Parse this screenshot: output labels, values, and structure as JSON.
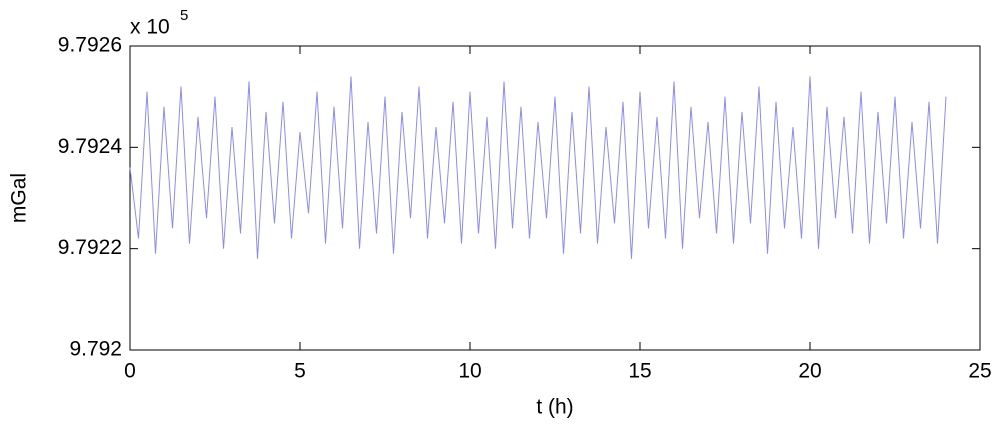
{
  "chart_data": {
    "type": "line",
    "y_multiplier": "x 10",
    "y_exponent": "5",
    "xlabel": "t (h)",
    "ylabel": "mGal",
    "x": [
      0,
      0.25,
      0.5,
      0.75,
      1,
      1.25,
      1.5,
      1.75,
      2,
      2.25,
      2.5,
      2.75,
      3,
      3.25,
      3.5,
      3.75,
      4,
      4.25,
      4.5,
      4.75,
      5,
      5.25,
      5.5,
      5.75,
      6,
      6.25,
      6.5,
      6.75,
      7,
      7.25,
      7.5,
      7.75,
      8,
      8.25,
      8.5,
      8.75,
      9,
      9.25,
      9.5,
      9.75,
      10,
      10.25,
      10.5,
      10.75,
      11,
      11.25,
      11.5,
      11.75,
      12,
      12.25,
      12.5,
      12.75,
      13,
      13.25,
      13.5,
      13.75,
      14,
      14.25,
      14.5,
      14.75,
      15,
      15.25,
      15.5,
      15.75,
      16,
      16.25,
      16.5,
      16.75,
      17,
      17.25,
      17.5,
      17.75,
      18,
      18.25,
      18.5,
      18.75,
      19,
      19.25,
      19.5,
      19.75,
      20,
      20.25,
      20.5,
      20.75,
      21,
      21.25,
      21.5,
      21.75,
      22,
      22.25,
      22.5,
      22.75,
      23,
      23.25,
      23.5,
      23.75,
      24
    ],
    "series": [
      {
        "color": "#8c8cf0",
        "values": [
          9.79236,
          9.79222,
          9.79251,
          9.79219,
          9.79248,
          9.79224,
          9.79252,
          9.79221,
          9.79246,
          9.79226,
          9.7925,
          9.7922,
          9.79244,
          9.79223,
          9.79253,
          9.79218,
          9.79247,
          9.79225,
          9.79249,
          9.79222,
          9.79243,
          9.79227,
          9.79251,
          9.79221,
          9.79248,
          9.79224,
          9.79254,
          9.7922,
          9.79245,
          9.79223,
          9.7925,
          9.79219,
          9.79247,
          9.79226,
          9.79252,
          9.79222,
          9.79244,
          9.79225,
          9.79249,
          9.79221,
          9.79251,
          9.79223,
          9.79246,
          9.7922,
          9.79253,
          9.79224,
          9.79248,
          9.79222,
          9.79245,
          9.79226,
          9.7925,
          9.79219,
          9.79247,
          9.79223,
          9.79252,
          9.79221,
          9.79244,
          9.79225,
          9.79249,
          9.79218,
          9.79251,
          9.79224,
          9.79246,
          9.79222,
          9.79253,
          9.7922,
          9.79248,
          9.79226,
          9.79245,
          9.79223,
          9.7925,
          9.79221,
          9.79247,
          9.79225,
          9.79252,
          9.79219,
          9.79249,
          9.79224,
          9.79244,
          9.79222,
          9.79254,
          9.7922,
          9.79248,
          9.79226,
          9.79246,
          9.79223,
          9.79251,
          9.79221,
          9.79247,
          9.79225,
          9.7925,
          9.79222,
          9.79245,
          9.79224,
          9.79249,
          9.79221,
          9.7925
        ]
      }
    ],
    "xlim": [
      0,
      25
    ],
    "xticks": [
      0,
      5,
      10,
      15,
      20,
      25
    ],
    "ylim": [
      9.792,
      9.7926
    ],
    "yticks": [
      9.792,
      9.7922,
      9.7924,
      9.7926
    ],
    "grid": false
  }
}
